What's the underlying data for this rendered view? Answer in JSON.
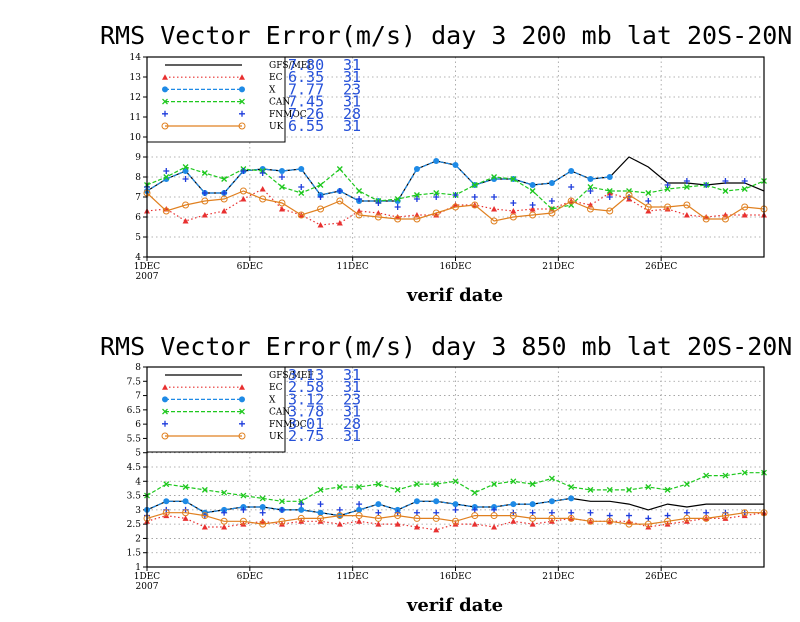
{
  "chart_data": [
    {
      "type": "line",
      "title": "RMS Vector Error(m/s) day 3  200 mb   lat 20S-20N",
      "xlabel": "verif date",
      "ylim": [
        4,
        14
      ],
      "yticks": [
        4,
        5,
        6,
        7,
        8,
        9,
        10,
        11,
        12,
        13,
        14
      ],
      "xlim": [
        1,
        31
      ],
      "xticks": [
        {
          "day": 1,
          "label": "1DEC",
          "label2": "2007"
        },
        {
          "day": 6,
          "label": "6DEC"
        },
        {
          "day": 11,
          "label": "11DEC"
        },
        {
          "day": 16,
          "label": "16DEC"
        },
        {
          "day": 21,
          "label": "21DEC"
        },
        {
          "day": 26,
          "label": "26DEC"
        }
      ],
      "grid": true,
      "legend_position": "top-left",
      "series": [
        {
          "name": "GFS/MEF",
          "value": "7.80",
          "count": "31",
          "color": "#000000",
          "style": "solid",
          "marker": "none",
          "values": [
            7.3,
            7.9,
            8.3,
            7.2,
            7.2,
            8.3,
            8.4,
            8.3,
            8.4,
            7.1,
            7.3,
            6.8,
            6.8,
            6.8,
            8.4,
            8.8,
            8.6,
            7.6,
            7.9,
            7.9,
            7.6,
            7.7,
            8.3,
            7.9,
            8.0,
            9.0,
            8.5,
            7.7,
            7.7,
            7.6,
            7.7,
            7.7,
            7.3
          ]
        },
        {
          "name": "EC",
          "value": "6.35",
          "count": "31",
          "color": "#e83030",
          "style": "dotted",
          "marker": "triangle",
          "values": [
            6.3,
            6.4,
            5.8,
            6.1,
            6.3,
            6.9,
            7.4,
            6.4,
            6.1,
            5.6,
            5.7,
            6.3,
            6.2,
            6.0,
            6.1,
            6.1,
            6.6,
            6.6,
            6.4,
            6.3,
            6.4,
            6.4,
            6.8,
            6.6,
            7.2,
            6.9,
            6.3,
            6.4,
            6.1,
            6.0,
            6.1,
            6.1,
            6.1
          ]
        },
        {
          "name": "X",
          "value": "7.77",
          "count": "23",
          "color": "#1e8ae6",
          "style": "dashed",
          "marker": "circle",
          "values": [
            7.3,
            7.9,
            8.3,
            7.2,
            7.2,
            8.3,
            8.4,
            8.3,
            8.4,
            7.1,
            7.3,
            6.8,
            6.8,
            6.8,
            8.4,
            8.8,
            8.6,
            7.6,
            7.9,
            7.9,
            7.6,
            7.7,
            8.3,
            7.9,
            8.0,
            null,
            null,
            null,
            null,
            null,
            null,
            null,
            null
          ]
        },
        {
          "name": "CAN",
          "value": "7.45",
          "count": "31",
          "color": "#1ec81e",
          "style": "dashed",
          "marker": "x",
          "values": [
            7.6,
            8.0,
            8.5,
            8.2,
            7.9,
            8.4,
            8.3,
            7.5,
            7.2,
            7.6,
            8.4,
            7.3,
            6.8,
            6.9,
            7.1,
            7.2,
            7.1,
            7.6,
            8.0,
            7.9,
            7.3,
            6.4,
            6.6,
            7.5,
            7.3,
            7.3,
            7.2,
            7.4,
            7.5,
            7.6,
            7.3,
            7.4,
            7.8
          ]
        },
        {
          "name": "FNMOC",
          "value": "7.26",
          "count": "28",
          "color": "#1e3cdc",
          "style": "none",
          "marker": "plus",
          "values": [
            7.5,
            8.3,
            7.9,
            7.2,
            7.2,
            8.3,
            8.2,
            8.0,
            7.5,
            7.0,
            7.3,
            6.9,
            6.7,
            6.5,
            6.9,
            7.0,
            7.1,
            7.0,
            7.0,
            6.7,
            6.6,
            6.8,
            7.5,
            7.3,
            7.0,
            7.0,
            6.8,
            7.6,
            7.8,
            7.6,
            7.8,
            7.8,
            null
          ]
        },
        {
          "name": "UK",
          "value": "6.55",
          "count": "31",
          "color": "#e08020",
          "style": "solid",
          "marker": "circle-open",
          "values": [
            7.2,
            6.3,
            6.6,
            6.8,
            6.9,
            7.3,
            6.9,
            6.7,
            6.1,
            6.4,
            6.8,
            6.1,
            6.0,
            5.9,
            5.9,
            6.2,
            6.5,
            6.6,
            5.8,
            6.0,
            6.1,
            6.2,
            6.8,
            6.4,
            6.3,
            7.1,
            6.5,
            6.5,
            6.6,
            5.9,
            5.9,
            6.5,
            6.4
          ]
        }
      ]
    },
    {
      "type": "line",
      "title": "RMS Vector Error(m/s) day 3  850 mb   lat 20S-20N",
      "xlabel": "verif date",
      "ylim": [
        1,
        8
      ],
      "yticks": [
        1,
        1.5,
        2,
        2.5,
        3,
        3.5,
        4,
        4.5,
        5,
        5.5,
        6,
        6.5,
        7,
        7.5,
        8
      ],
      "xlim": [
        1,
        31
      ],
      "xticks": [
        {
          "day": 1,
          "label": "1DEC",
          "label2": "2007"
        },
        {
          "day": 6,
          "label": "6DEC"
        },
        {
          "day": 11,
          "label": "11DEC"
        },
        {
          "day": 16,
          "label": "16DEC"
        },
        {
          "day": 21,
          "label": "21DEC"
        },
        {
          "day": 26,
          "label": "26DEC"
        }
      ],
      "grid": true,
      "legend_position": "top-left",
      "series": [
        {
          "name": "GFS/MEF",
          "value": "3.13",
          "count": "31",
          "color": "#000000",
          "style": "solid",
          "marker": "none",
          "values": [
            3.0,
            3.3,
            3.3,
            2.9,
            3.0,
            3.1,
            3.1,
            3.0,
            3.0,
            2.9,
            2.8,
            3.0,
            3.2,
            3.0,
            3.3,
            3.3,
            3.2,
            3.1,
            3.1,
            3.2,
            3.2,
            3.3,
            3.4,
            3.3,
            3.3,
            3.2,
            3.0,
            3.2,
            3.1,
            3.2,
            3.2,
            3.2,
            3.2
          ]
        },
        {
          "name": "EC",
          "value": "2.58",
          "count": "31",
          "color": "#e83030",
          "style": "dotted",
          "marker": "triangle",
          "values": [
            2.6,
            2.8,
            2.7,
            2.4,
            2.4,
            2.5,
            2.6,
            2.5,
            2.6,
            2.6,
            2.5,
            2.6,
            2.5,
            2.5,
            2.4,
            2.3,
            2.5,
            2.5,
            2.4,
            2.6,
            2.5,
            2.6,
            2.7,
            2.6,
            2.6,
            2.6,
            2.4,
            2.5,
            2.6,
            2.7,
            2.7,
            2.8,
            2.9
          ]
        },
        {
          "name": "X",
          "value": "3.12",
          "count": "23",
          "color": "#1e8ae6",
          "style": "dashed",
          "marker": "circle",
          "values": [
            3.0,
            3.3,
            3.3,
            2.9,
            3.0,
            3.1,
            3.1,
            3.0,
            3.0,
            2.9,
            2.8,
            3.0,
            3.2,
            3.0,
            3.3,
            3.3,
            3.2,
            3.1,
            3.1,
            3.2,
            3.2,
            3.3,
            3.4,
            null,
            null,
            null,
            null,
            null,
            null,
            null,
            null,
            null,
            null
          ]
        },
        {
          "name": "CAN",
          "value": "3.78",
          "count": "31",
          "color": "#1ec81e",
          "style": "dashed",
          "marker": "x",
          "values": [
            3.5,
            3.9,
            3.8,
            3.7,
            3.6,
            3.5,
            3.4,
            3.3,
            3.3,
            3.7,
            3.8,
            3.8,
            3.9,
            3.7,
            3.9,
            3.9,
            4.0,
            3.6,
            3.9,
            4.0,
            3.9,
            4.1,
            3.8,
            3.7,
            3.7,
            3.7,
            3.8,
            3.7,
            3.9,
            4.2,
            4.2,
            4.3,
            4.3
          ]
        },
        {
          "name": "FNMOC",
          "value": "3.01",
          "count": "28",
          "color": "#1e3cdc",
          "style": "none",
          "marker": "plus",
          "values": [
            2.8,
            3.0,
            3.0,
            2.8,
            2.9,
            3.0,
            2.9,
            3.0,
            3.2,
            3.2,
            3.0,
            3.2,
            2.9,
            2.9,
            2.9,
            2.9,
            3.0,
            3.0,
            3.0,
            2.9,
            2.9,
            2.9,
            2.9,
            2.9,
            2.8,
            2.8,
            2.7,
            2.8,
            2.9,
            2.9,
            2.9,
            2.9,
            null
          ]
        },
        {
          "name": "UK",
          "value": "2.75",
          "count": "31",
          "color": "#e08020",
          "style": "solid",
          "marker": "circle-open",
          "values": [
            2.7,
            2.9,
            2.9,
            2.8,
            2.6,
            2.6,
            2.5,
            2.6,
            2.7,
            2.7,
            2.8,
            2.8,
            2.7,
            2.8,
            2.7,
            2.7,
            2.6,
            2.8,
            2.8,
            2.8,
            2.7,
            2.7,
            2.7,
            2.6,
            2.6,
            2.5,
            2.5,
            2.6,
            2.7,
            2.7,
            2.8,
            2.9,
            2.9
          ]
        }
      ]
    }
  ]
}
